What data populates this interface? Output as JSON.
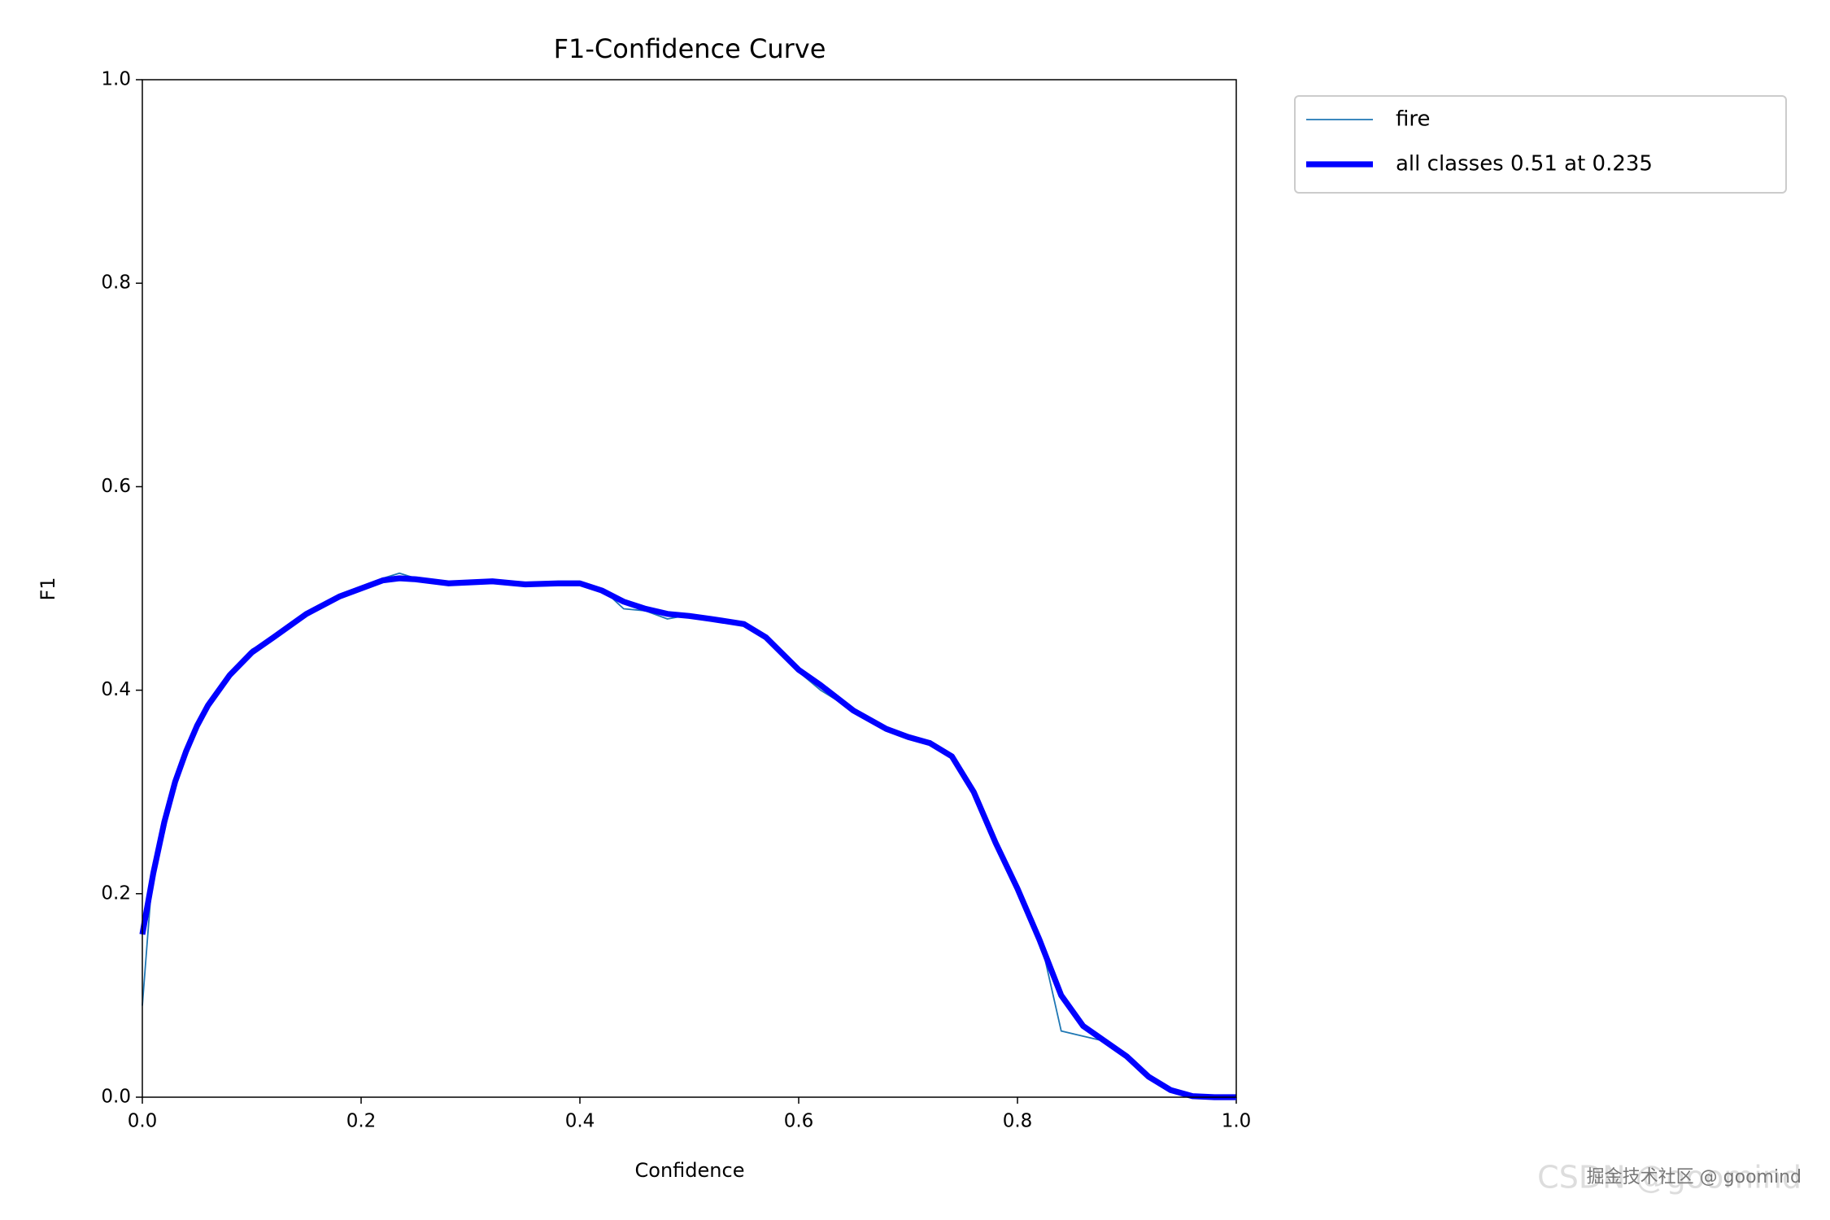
{
  "chart_data": {
    "type": "line",
    "title": "F1-Confidence Curve",
    "xlabel": "Confidence",
    "ylabel": "F1",
    "x": [
      0,
      0.01,
      0.02,
      0.03,
      0.04,
      0.05,
      0.06,
      0.08,
      0.1,
      0.12,
      0.15,
      0.18,
      0.2,
      0.22,
      0.235,
      0.25,
      0.28,
      0.3,
      0.32,
      0.35,
      0.38,
      0.4,
      0.42,
      0.44,
      0.46,
      0.48,
      0.5,
      0.52,
      0.55,
      0.57,
      0.6,
      0.62,
      0.65,
      0.68,
      0.7,
      0.72,
      0.74,
      0.76,
      0.78,
      0.8,
      0.82,
      0.84,
      0.86,
      0.88,
      0.9,
      0.92,
      0.94,
      0.96,
      0.98,
      1.0
    ],
    "series": [
      {
        "name": "fire",
        "color": "#1f77b4",
        "width": 1.5,
        "values": [
          0.09,
          0.23,
          0.26,
          0.31,
          0.345,
          0.365,
          0.385,
          0.414,
          0.44,
          0.452,
          0.476,
          0.49,
          0.5,
          0.51,
          0.515,
          0.51,
          0.503,
          0.508,
          0.506,
          0.503,
          0.507,
          0.507,
          0.5,
          0.48,
          0.478,
          0.47,
          0.474,
          0.468,
          0.466,
          0.45,
          0.418,
          0.4,
          0.38,
          0.36,
          0.355,
          0.348,
          0.335,
          0.3,
          0.25,
          0.205,
          0.16,
          0.065,
          0.06,
          0.055,
          0.04,
          0.02,
          0.005,
          0,
          0,
          0
        ]
      },
      {
        "name": "all classes 0.51 at 0.235",
        "color": "#0000ff",
        "width": 6,
        "values": [
          0.16,
          0.22,
          0.27,
          0.31,
          0.34,
          0.365,
          0.385,
          0.415,
          0.437,
          0.452,
          0.475,
          0.492,
          0.5,
          0.508,
          0.51,
          0.509,
          0.505,
          0.506,
          0.507,
          0.504,
          0.505,
          0.505,
          0.498,
          0.487,
          0.48,
          0.475,
          0.473,
          0.47,
          0.465,
          0.452,
          0.42,
          0.405,
          0.38,
          0.362,
          0.354,
          0.348,
          0.335,
          0.3,
          0.25,
          0.205,
          0.155,
          0.1,
          0.07,
          0.055,
          0.04,
          0.02,
          0.007,
          0.001,
          0,
          0
        ]
      }
    ],
    "xlim": [
      0,
      1
    ],
    "ylim": [
      0,
      1
    ],
    "xticks": [
      {
        "value": 0,
        "label": "0.0"
      },
      0.2,
      0.4,
      0.6,
      0.8,
      {
        "value": 1,
        "label": "1.0"
      }
    ],
    "yticks": [
      {
        "value": 0,
        "label": "0.0"
      },
      0.2,
      0.4,
      0.6,
      0.8,
      {
        "value": 1,
        "label": "1.0"
      }
    ],
    "legend": "outside-upper-right"
  },
  "watermark": {
    "text": "掘金技术社区 @ goomind",
    "overlay": "CSDN @goomind"
  }
}
